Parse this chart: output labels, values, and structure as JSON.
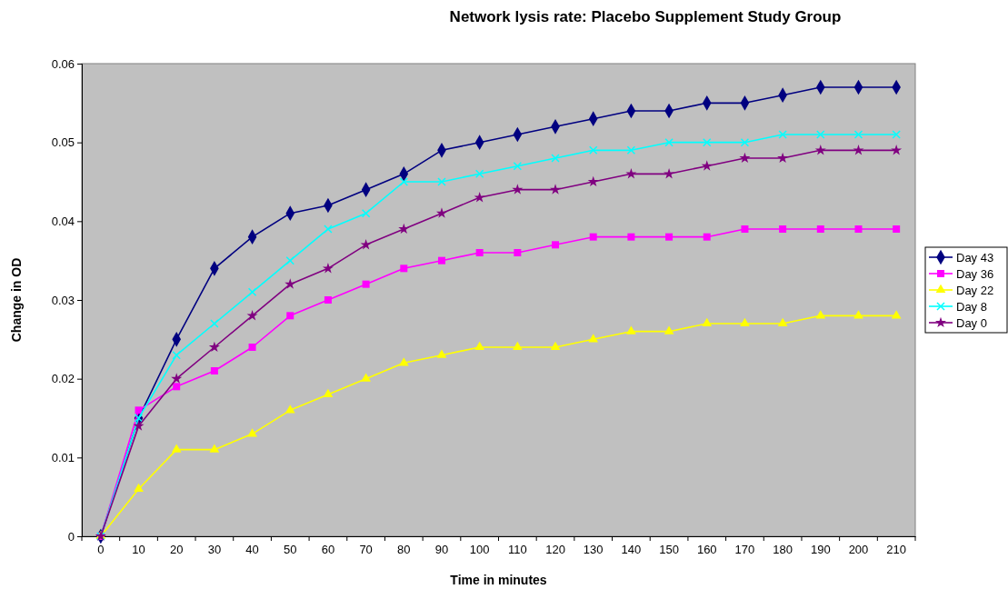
{
  "chart_data": {
    "type": "line",
    "title": "Network lysis rate: Placebo Supplement Study Group",
    "xlabel": "Time in minutes",
    "ylabel": "Change in OD",
    "categories": [
      "0",
      "10",
      "20",
      "30",
      "40",
      "50",
      "60",
      "70",
      "80",
      "90",
      "100",
      "110",
      "120",
      "130",
      "140",
      "150",
      "160",
      "170",
      "180",
      "190",
      "200",
      "210"
    ],
    "ylim": [
      0,
      0.06
    ],
    "yticks": [
      0,
      0.01,
      0.02,
      0.03,
      0.04,
      0.05,
      0.06
    ],
    "grid": false,
    "legend": "right",
    "series": [
      {
        "name": "Day 43",
        "color": "#000080",
        "marker": "diamond",
        "values": [
          0,
          0.015,
          0.025,
          0.034,
          0.038,
          0.041,
          0.042,
          0.044,
          0.046,
          0.049,
          0.05,
          0.051,
          0.052,
          0.053,
          0.054,
          0.054,
          0.055,
          0.055,
          0.056,
          0.057,
          0.057,
          0.057
        ]
      },
      {
        "name": "Day 36",
        "color": "#ff00ff",
        "marker": "square",
        "values": [
          0,
          0.016,
          0.019,
          0.021,
          0.024,
          0.028,
          0.03,
          0.032,
          0.034,
          0.035,
          0.036,
          0.036,
          0.037,
          0.038,
          0.038,
          0.038,
          0.038,
          0.039,
          0.039,
          0.039,
          0.039,
          0.039
        ]
      },
      {
        "name": "Day 22",
        "color": "#ffff00",
        "marker": "triangle",
        "values": [
          0,
          0.006,
          0.011,
          0.011,
          0.013,
          0.016,
          0.018,
          0.02,
          0.022,
          0.023,
          0.024,
          0.024,
          0.024,
          0.025,
          0.026,
          0.026,
          0.027,
          0.027,
          0.027,
          0.028,
          0.028,
          0.028
        ]
      },
      {
        "name": "Day 8",
        "color": "#00ffff",
        "marker": "cross",
        "values": [
          0,
          0.015,
          0.023,
          0.027,
          0.031,
          0.035,
          0.039,
          0.041,
          0.045,
          0.045,
          0.046,
          0.047,
          0.048,
          0.049,
          0.049,
          0.05,
          0.05,
          0.05,
          0.051,
          0.051,
          0.051,
          0.051
        ]
      },
      {
        "name": "Day 0",
        "color": "#800080",
        "marker": "star",
        "values": [
          0,
          0.014,
          0.02,
          0.024,
          0.028,
          0.032,
          0.034,
          0.037,
          0.039,
          0.041,
          0.043,
          0.044,
          0.044,
          0.045,
          0.046,
          0.046,
          0.047,
          0.048,
          0.048,
          0.049,
          0.049,
          0.049
        ]
      }
    ]
  }
}
